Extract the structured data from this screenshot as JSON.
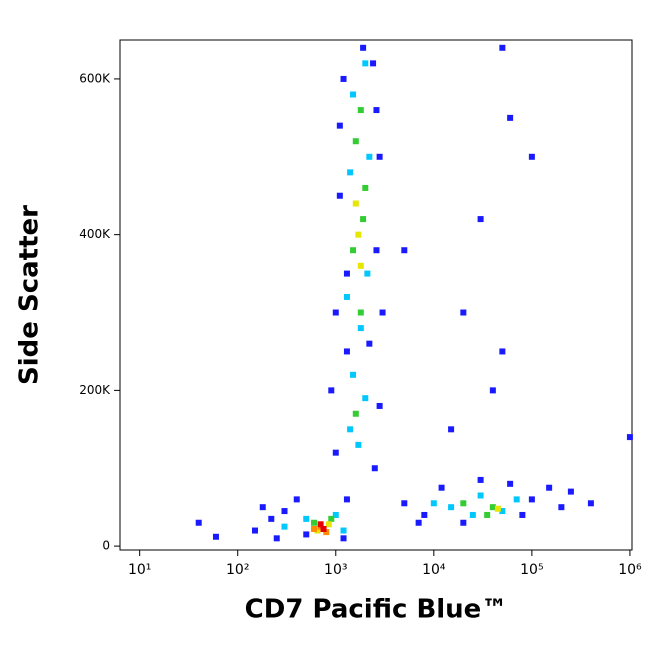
{
  "chart_data": {
    "type": "scatter",
    "x_label": "CD7 Pacific Blue™",
    "y_label": "Side Scatter",
    "xscale": "log",
    "xlim": [
      6.3,
      1050000
    ],
    "xticks": [
      {
        "value": 10,
        "label": "10¹"
      },
      {
        "value": 100,
        "label": "10²"
      },
      {
        "value": 1000,
        "label": "10³"
      },
      {
        "value": 10000,
        "label": "10⁴"
      },
      {
        "value": 100000,
        "label": "10⁵"
      },
      {
        "value": 1000000,
        "label": "10⁶"
      }
    ],
    "ylim": [
      -5000,
      650000
    ],
    "yticks": [
      0,
      {
        "value": 200000,
        "label": "200K"
      },
      {
        "value": 400000,
        "label": "400K"
      },
      {
        "value": 600000,
        "label": "600K"
      }
    ],
    "series": [
      {
        "color": "#1a1aff",
        "x": [
          150,
          220,
          300,
          400,
          500,
          1200,
          1300,
          250,
          40,
          60,
          180,
          1000,
          1100,
          2600,
          2800,
          1200,
          2400,
          900,
          2800,
          1000,
          2500,
          1300,
          3000,
          1100,
          2600,
          1300,
          2200,
          1900,
          5000,
          8000,
          12000,
          30000,
          60000,
          100000,
          150000,
          250000,
          200000,
          7000,
          20000,
          80000,
          400000,
          20000,
          50000,
          30000,
          60000,
          100000,
          15000,
          40000,
          1000000,
          50000,
          5000
        ],
        "values": [
          20000,
          35000,
          45000,
          60000,
          15000,
          10000,
          60000,
          10000,
          30000,
          12000,
          50000,
          300000,
          450000,
          380000,
          500000,
          600000,
          620000,
          200000,
          180000,
          120000,
          100000,
          250000,
          300000,
          540000,
          560000,
          350000,
          260000,
          640000,
          55000,
          40000,
          75000,
          85000,
          80000,
          60000,
          75000,
          70000,
          50000,
          30000,
          30000,
          40000,
          55000,
          300000,
          250000,
          420000,
          550000,
          500000,
          150000,
          200000,
          140000,
          640000,
          380000
        ]
      },
      {
        "color": "#00c8ff",
        "x": [
          500,
          1000,
          300,
          1200,
          1400,
          2000,
          1500,
          1300,
          2100,
          1400,
          2200,
          1500,
          2000,
          1800,
          15000,
          30000,
          50000,
          70000,
          25000,
          10000,
          1700
        ],
        "values": [
          35000,
          40000,
          25000,
          20000,
          150000,
          190000,
          220000,
          320000,
          350000,
          480000,
          500000,
          580000,
          620000,
          280000,
          50000,
          65000,
          45000,
          60000,
          40000,
          55000,
          130000
        ]
      },
      {
        "color": "#33cc33",
        "x": [
          600,
          900,
          1600,
          1800,
          1500,
          1900,
          1600,
          1800,
          2000,
          40000,
          35000,
          20000
        ],
        "values": [
          30000,
          35000,
          170000,
          300000,
          380000,
          420000,
          520000,
          560000,
          460000,
          50000,
          40000,
          55000
        ]
      },
      {
        "color": "#e6e600",
        "x": [
          650,
          850,
          1700,
          1600,
          1800,
          45000
        ],
        "values": [
          20000,
          28000,
          400000,
          440000,
          360000,
          48000
        ]
      },
      {
        "color": "#ff8c00",
        "x": [
          700,
          800,
          600
        ],
        "values": [
          25000,
          18000,
          22000
        ]
      },
      {
        "color": "#e60000",
        "x": [
          750,
          700
        ],
        "values": [
          22000,
          28000
        ]
      }
    ]
  }
}
